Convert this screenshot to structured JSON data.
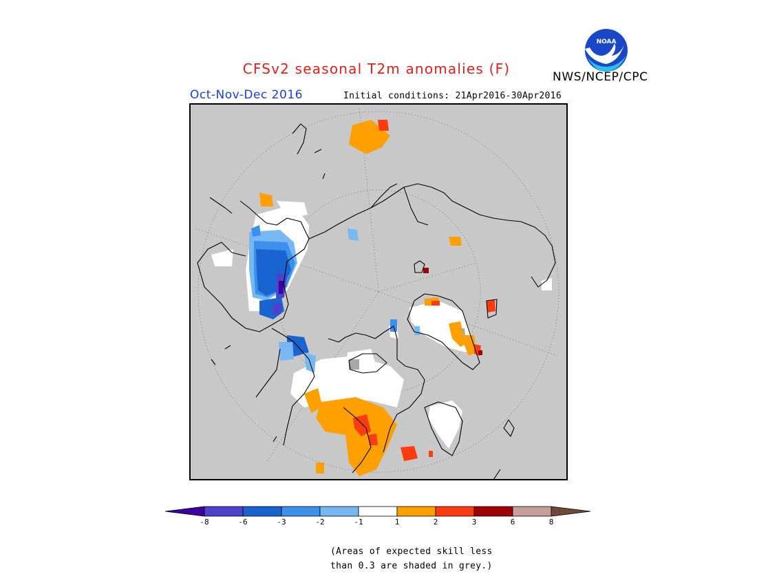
{
  "header": {
    "title": "CFSv2 seasonal T2m anomalies (F)",
    "agency": "NWS/NCEP/CPC",
    "logo_text": "NOAA",
    "period": "Oct-Nov-Dec 2016",
    "initial_conditions": "Initial conditions: 21Apr2016-30Apr2016"
  },
  "map": {
    "projection": "north-polar-stereographic",
    "background_color": "#c8c8c8",
    "grid": "dotted-latitude-longitude"
  },
  "colorbar": {
    "colors": [
      "#3a00a0",
      "#5040cc",
      "#1a64d2",
      "#3a90ea",
      "#78b8f2",
      "#ffffff",
      "#ffa000",
      "#ff3c10",
      "#a00000",
      "#c8a09a",
      "#704838"
    ],
    "ticks": [
      "-8",
      "-6",
      "-3",
      "-2",
      "-1",
      "1",
      "2",
      "3",
      "6",
      "8"
    ]
  },
  "note": {
    "line1": "(Areas of expected skill less",
    "line2": "than 0.3 are shaded in grey.)"
  }
}
